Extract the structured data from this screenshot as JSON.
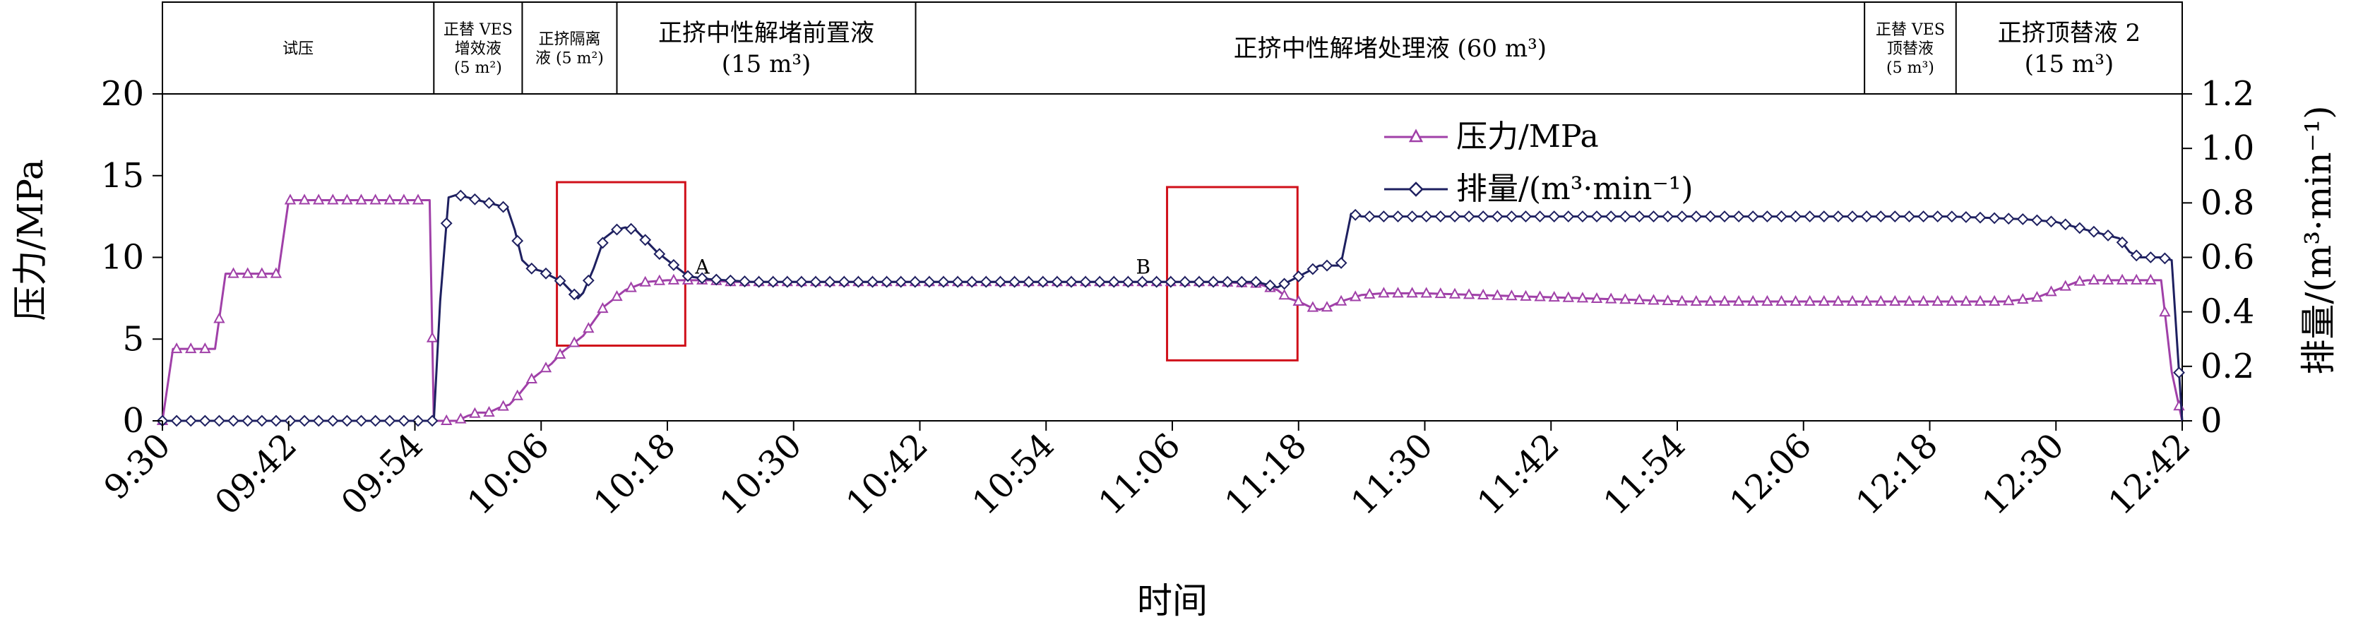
{
  "chart_data": {
    "type": "line",
    "xlabel": "时间",
    "ylabel": "压力/MPa",
    "y2label": "排量/(m³·min⁻¹)",
    "x_ticks": [
      "9:30",
      "09:42",
      "09:54",
      "10:06",
      "10:18",
      "10:30",
      "10:42",
      "10:54",
      "11:06",
      "11:18",
      "11:30",
      "11:42",
      "11:54",
      "12:06",
      "12:18",
      "12:30",
      "12:42"
    ],
    "x_range_min": [
      0,
      192
    ],
    "ylim": [
      0,
      20
    ],
    "y_ticks": [
      0,
      5,
      10,
      15,
      20
    ],
    "y2lim": [
      0,
      1.2
    ],
    "y2_ticks": [
      "0",
      "0.2",
      "0.4",
      "0.6",
      "0.8",
      "1.0",
      "1.2"
    ],
    "stages": [
      {
        "lines": [
          "试压"
        ],
        "start_min": 0,
        "end_min": 25.8,
        "small": true
      },
      {
        "lines": [
          "正替 VES",
          "增效液",
          "(5 m²)"
        ],
        "start_min": 25.8,
        "end_min": 34.2,
        "small": true
      },
      {
        "lines": [
          "正挤隔离",
          "液 (5 m²)"
        ],
        "start_min": 34.2,
        "end_min": 43.2,
        "small": true
      },
      {
        "lines": [
          "正挤中性解堵前置液",
          "(15 m³)"
        ],
        "start_min": 43.2,
        "end_min": 71.6,
        "small": false
      },
      {
        "lines": [
          "正挤中性解堵处理液 (60 m³)"
        ],
        "start_min": 71.6,
        "end_min": 161.8,
        "small": false
      },
      {
        "lines": [
          "正替 VES",
          "顶替液",
          "(5 m³)"
        ],
        "start_min": 161.8,
        "end_min": 170.5,
        "small": true
      },
      {
        "lines": [
          "正挤顶替液 2",
          "(15 m³)"
        ],
        "start_min": 170.5,
        "end_min": 192,
        "small": false
      }
    ],
    "legend_position": "top-center",
    "series": [
      {
        "name": "压力/MPa",
        "axis": "left",
        "color": "#a040a8",
        "marker": "triangle",
        "x": [
          0,
          1,
          5,
          6,
          8,
          11,
          12,
          14,
          16,
          17,
          25.4,
          25.8,
          26.4,
          27,
          28,
          29,
          30,
          31,
          32,
          33,
          34,
          35,
          36,
          37,
          38,
          39,
          40,
          42,
          44,
          46,
          48,
          50,
          52,
          54,
          56,
          60,
          65,
          70,
          75,
          80,
          85,
          90,
          95,
          100,
          104,
          106,
          107,
          108,
          109,
          110,
          111,
          112,
          113,
          114,
          116,
          120,
          125,
          130,
          135,
          140,
          145,
          150,
          155,
          160,
          165,
          170,
          175,
          178,
          180,
          182,
          183,
          184,
          186,
          188,
          190,
          191,
          192
        ],
        "y": [
          0,
          4.4,
          4.4,
          9.0,
          9.0,
          9.0,
          13.5,
          13.5,
          13.5,
          13.5,
          13.5,
          0,
          0,
          0,
          0,
          0.3,
          0.5,
          0.5,
          0.8,
          1.0,
          1.7,
          2.5,
          3.0,
          3.5,
          4.2,
          4.7,
          5.2,
          7.0,
          8.0,
          8.5,
          8.6,
          8.6,
          8.6,
          8.5,
          8.5,
          8.5,
          8.5,
          8.5,
          8.5,
          8.5,
          8.5,
          8.5,
          8.5,
          8.5,
          8.4,
          8.0,
          7.5,
          7.3,
          7.0,
          6.8,
          7.0,
          7.3,
          7.5,
          7.7,
          7.8,
          7.8,
          7.7,
          7.6,
          7.5,
          7.4,
          7.3,
          7.3,
          7.3,
          7.3,
          7.3,
          7.3,
          7.3,
          7.5,
          8.0,
          8.5,
          8.6,
          8.6,
          8.6,
          8.6,
          8.6,
          3.0,
          0
        ]
      },
      {
        "name": "排量/(m³·min⁻¹)",
        "axis": "right",
        "color": "#1e2060",
        "marker": "diamond",
        "x": [
          0,
          10,
          20,
          25.8,
          26.4,
          27.2,
          28,
          29,
          30,
          31,
          32,
          32.8,
          33.5,
          34.2,
          35,
          36,
          37,
          38,
          39,
          39.5,
          40,
          41,
          42,
          43,
          44,
          45,
          46,
          47,
          48,
          49,
          50,
          52,
          56,
          60,
          70,
          80,
          90,
          100,
          102,
          104,
          106,
          108,
          109,
          110,
          111,
          112,
          113,
          114,
          120,
          130,
          140,
          150,
          160,
          170,
          177,
          180,
          182,
          184,
          186,
          187,
          188,
          190,
          191,
          192
        ],
        "y": [
          0,
          0,
          0,
          0,
          0.44,
          0.82,
          0.83,
          0.82,
          0.81,
          0.8,
          0.79,
          0.78,
          0.7,
          0.59,
          0.56,
          0.55,
          0.53,
          0.51,
          0.47,
          0.45,
          0.47,
          0.56,
          0.67,
          0.7,
          0.71,
          0.7,
          0.66,
          0.62,
          0.59,
          0.56,
          0.53,
          0.52,
          0.51,
          0.51,
          0.51,
          0.51,
          0.51,
          0.51,
          0.51,
          0.51,
          0.49,
          0.53,
          0.55,
          0.57,
          0.57,
          0.57,
          0.76,
          0.75,
          0.75,
          0.75,
          0.75,
          0.75,
          0.75,
          0.75,
          0.74,
          0.73,
          0.71,
          0.69,
          0.67,
          0.62,
          0.6,
          0.6,
          0.59,
          0
        ]
      }
    ],
    "annotations": [
      {
        "label": "A",
        "box_x": [
          37.5,
          49.7
        ],
        "box_y": [
          4.6,
          14.6
        ]
      },
      {
        "label": "B",
        "box_x": [
          95.5,
          107.9
        ],
        "box_y": [
          3.7,
          14.3
        ]
      }
    ],
    "box_color": "#d0101a"
  }
}
